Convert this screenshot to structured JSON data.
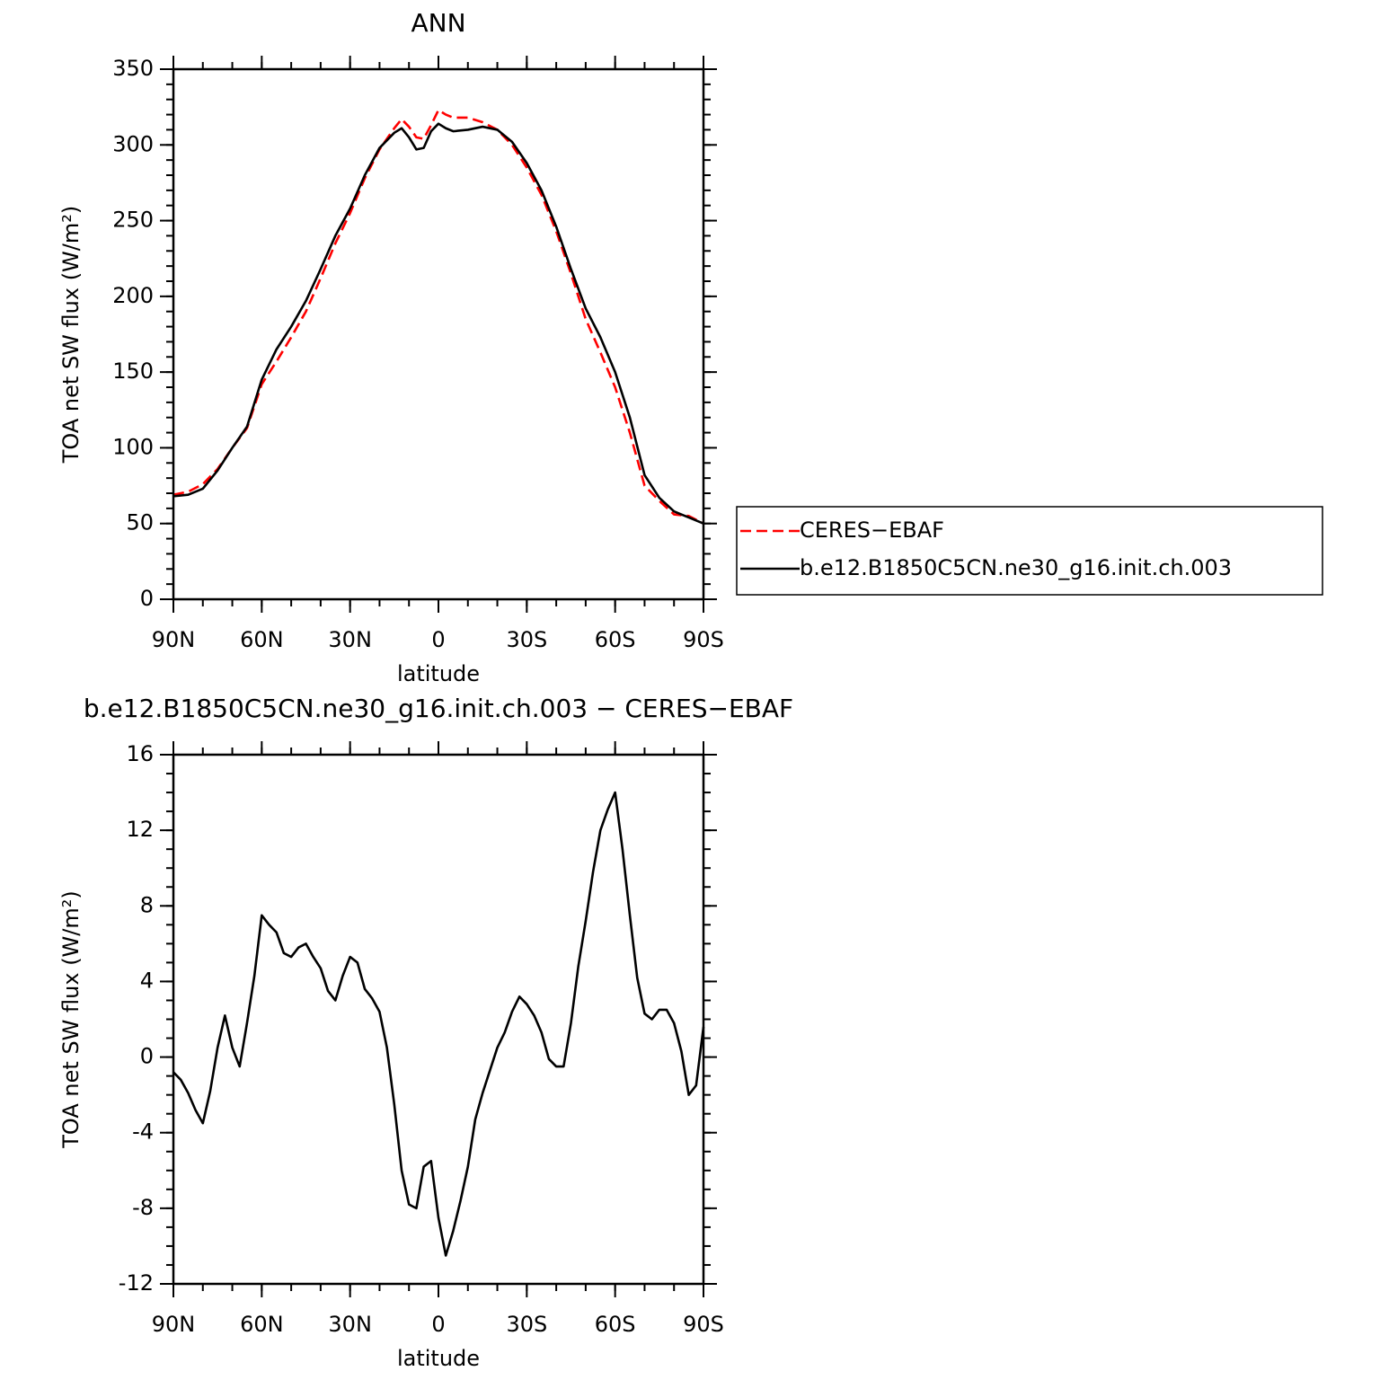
{
  "chart_data": [
    {
      "type": "line",
      "title": "ANN",
      "x_label": "latitude",
      "y_label": "TOA net SW flux (W/m²)",
      "x": [
        90,
        85,
        80,
        75,
        70,
        65,
        60,
        55,
        50,
        45,
        40,
        35,
        30,
        25,
        20,
        15,
        12.5,
        10,
        7.5,
        5,
        2.5,
        0,
        -2.5,
        -5,
        -10,
        -15,
        -20,
        -25,
        -30,
        -35,
        -40,
        -45,
        -50,
        -55,
        -60,
        -65,
        -70,
        -75,
        -80,
        -85,
        -90
      ],
      "series": [
        {
          "name": "CERES−EBAF",
          "color": "#ff0000",
          "linestyle": "dashed",
          "values": [
            69,
            71,
            76,
            86,
            100,
            113,
            142,
            157,
            173,
            190,
            212,
            235,
            255,
            278,
            297,
            311,
            317,
            312,
            305,
            304,
            313,
            323,
            320,
            318,
            318,
            315,
            310,
            300,
            285,
            267,
            243,
            215,
            185,
            163,
            140,
            110,
            75,
            65,
            56,
            55,
            50
          ]
        },
        {
          "name": "b.e12.B1850C5CN.ne30_g16.init.ch.003",
          "color": "#000000",
          "linestyle": "solid",
          "values": [
            68,
            69,
            73,
            85,
            100,
            114,
            145,
            165,
            180,
            197,
            218,
            240,
            258,
            280,
            298,
            308,
            311,
            305,
            297,
            298,
            309,
            314,
            311,
            309,
            310,
            312,
            310,
            302,
            288,
            270,
            246,
            218,
            192,
            173,
            150,
            120,
            82,
            67,
            58,
            54,
            50
          ]
        }
      ],
      "xlim": [
        90,
        -90
      ],
      "xticks": [
        {
          "value": 90,
          "label": "90N"
        },
        {
          "value": 60,
          "label": "60N"
        },
        {
          "value": 30,
          "label": "30N"
        },
        0,
        {
          "value": -30,
          "label": "30S"
        },
        {
          "value": -60,
          "label": "60S"
        },
        {
          "value": -90,
          "label": "90S"
        }
      ],
      "ylim": [
        0,
        350
      ],
      "yticks": [
        0,
        50,
        100,
        150,
        200,
        250,
        300,
        350
      ],
      "legend": "right"
    },
    {
      "type": "line",
      "title": "b.e12.B1850C5CN.ne30_g16.init.ch.003 − CERES−EBAF",
      "x_label": "latitude",
      "y_label": "TOA net SW flux (W/m²)",
      "x": [
        90,
        87.5,
        85,
        82.5,
        80,
        77.5,
        75,
        72.5,
        70,
        67.5,
        65,
        62.5,
        60,
        57.5,
        55,
        52.5,
        50,
        47.5,
        45,
        42.5,
        40,
        37.5,
        35,
        32.5,
        30,
        27.5,
        25,
        22.5,
        20,
        17.5,
        15,
        12.5,
        10,
        7.5,
        5,
        2.5,
        0,
        -2.5,
        -5,
        -7.5,
        -10,
        -12.5,
        -15,
        -17.5,
        -20,
        -22.5,
        -25,
        -27.5,
        -30,
        -32.5,
        -35,
        -37.5,
        -40,
        -42.5,
        -45,
        -47.5,
        -50,
        -52.5,
        -55,
        -57.5,
        -60,
        -62.5,
        -65,
        -67.5,
        -70,
        -72.5,
        -75,
        -77.5,
        -80,
        -82.5,
        -85,
        -87.5,
        -90
      ],
      "series": [
        {
          "color": "#000000",
          "linestyle": "solid",
          "values": [
            -0.8,
            -1.2,
            -1.9,
            -2.8,
            -3.5,
            -1.8,
            0.5,
            2.2,
            0.5,
            -0.5,
            1.8,
            4.3,
            7.5,
            7.0,
            6.6,
            5.5,
            5.3,
            5.8,
            6.0,
            5.3,
            4.7,
            3.5,
            3.0,
            4.3,
            5.3,
            5.0,
            3.6,
            3.1,
            2.4,
            0.5,
            -2.5,
            -6,
            -7.8,
            -8.0,
            -5.8,
            -5.5,
            -8.5,
            -10.5,
            -9.2,
            -7.6,
            -5.8,
            -3.3,
            -1.9,
            -0.7,
            0.5,
            1.3,
            2.4,
            3.2,
            2.8,
            2.2,
            1.3,
            -0.1,
            -0.5,
            -0.5,
            1.8,
            4.8,
            7.2,
            9.8,
            12.0,
            13.1,
            14.0,
            11,
            7.5,
            4.2,
            2.3,
            2.0,
            2.5,
            2.5,
            1.8,
            0.3,
            -2.0,
            -1.5,
            1.6
          ]
        }
      ],
      "xlim": [
        90,
        -90
      ],
      "xticks": [
        {
          "value": 90,
          "label": "90N"
        },
        {
          "value": 60,
          "label": "60N"
        },
        {
          "value": 30,
          "label": "30N"
        },
        0,
        {
          "value": -30,
          "label": "30S"
        },
        {
          "value": -60,
          "label": "60S"
        },
        {
          "value": -90,
          "label": "90S"
        }
      ],
      "ylim": [
        -12,
        16
      ],
      "yticks": [
        -12,
        -8,
        -4,
        0,
        4,
        8,
        12,
        16
      ]
    }
  ]
}
